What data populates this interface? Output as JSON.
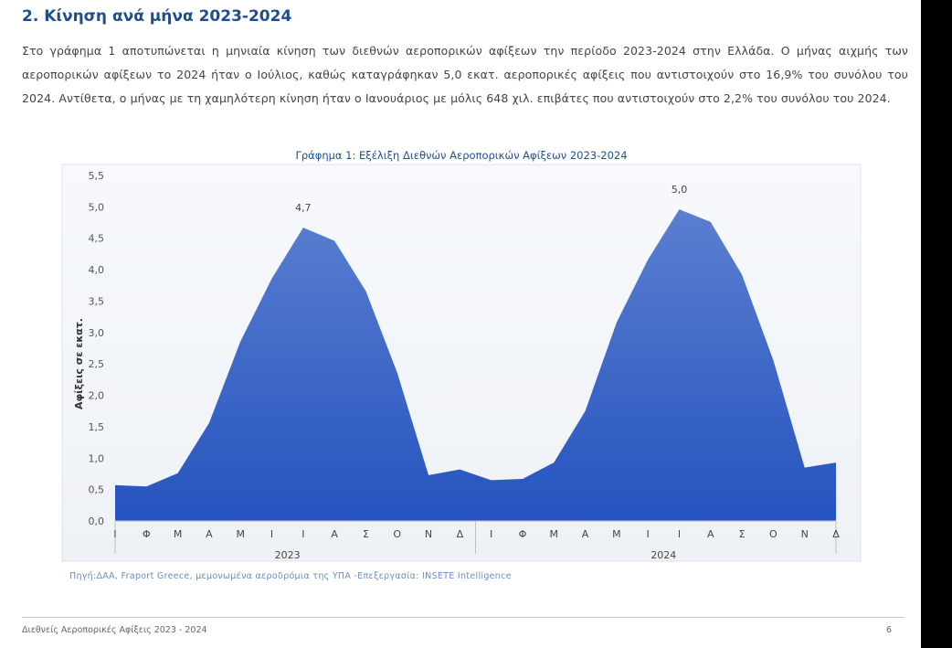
{
  "section": {
    "title": "2. Κίνηση ανά μήνα 2023-2024",
    "paragraph": "Στο γράφημα 1 αποτυπώνεται η μηνιαία κίνηση των διεθνών αεροπορικών αφίξεων την περίοδο 2023-2024 στην Ελλάδα. Ο μήνας αιχμής των αεροπορικών αφίξεων το 2024 ήταν ο Ιούλιος, καθώς καταγράφηκαν 5,0 εκατ. αεροπορικές αφίξεις που αντιστοιχούν στο 16,9% του συνόλου του 2024. Αντίθετα, ο μήνας με τη χαμηλότερη κίνηση ήταν ο Ιανουάριος με μόλις 648 χιλ. επιβάτες που αντιστοιχούν στο 2,2% του συνόλου του 2024."
  },
  "chart_data": {
    "type": "area",
    "title": "Γράφημα 1: Εξέλιξη Διεθνών Αεροπορικών Αφίξεων 2023-2024",
    "ylabel": "Αφίξεις σε εκατ.",
    "ylim": [
      0,
      5.5
    ],
    "yticks": [
      "0,0",
      "0,5",
      "1,0",
      "1,5",
      "2,0",
      "2,5",
      "3,0",
      "3,5",
      "4,0",
      "4,5",
      "5,0",
      "5,5"
    ],
    "grid": false,
    "x": [
      "Ι",
      "Φ",
      "Μ",
      "Α",
      "Μ",
      "Ι",
      "Ι",
      "Α",
      "Σ",
      "Ο",
      "Ν",
      "Δ",
      "Ι",
      "Φ",
      "Μ",
      "Α",
      "Μ",
      "Ι",
      "Ι",
      "Α",
      "Σ",
      "Ο",
      "Ν",
      "Δ"
    ],
    "groups": [
      {
        "label": "2023",
        "start": 0,
        "end": 11
      },
      {
        "label": "2024",
        "start": 12,
        "end": 23
      }
    ],
    "series": [
      {
        "values": [
          0.57,
          0.55,
          0.76,
          1.56,
          2.86,
          3.86,
          4.67,
          4.46,
          3.66,
          2.36,
          0.73,
          0.82,
          0.65,
          0.67,
          0.93,
          1.75,
          3.16,
          4.16,
          4.96,
          4.76,
          3.92,
          2.56,
          0.85,
          0.93
        ],
        "color": "#3a64c8"
      }
    ],
    "annotations": [
      {
        "index": 6,
        "label": "4,7"
      },
      {
        "index": 18,
        "label": "5,0"
      }
    ]
  },
  "source_note": "Πηγή:ΔΑΑ, Fraport Greece, μεμονωμένα αεροδρόμια της ΥΠΑ -Επεξεργασία: INSETE Intelligence",
  "footer": {
    "left": "Διεθνείς Αεροπορικές Αφίξεις 2023 - 2024",
    "page": "6"
  }
}
